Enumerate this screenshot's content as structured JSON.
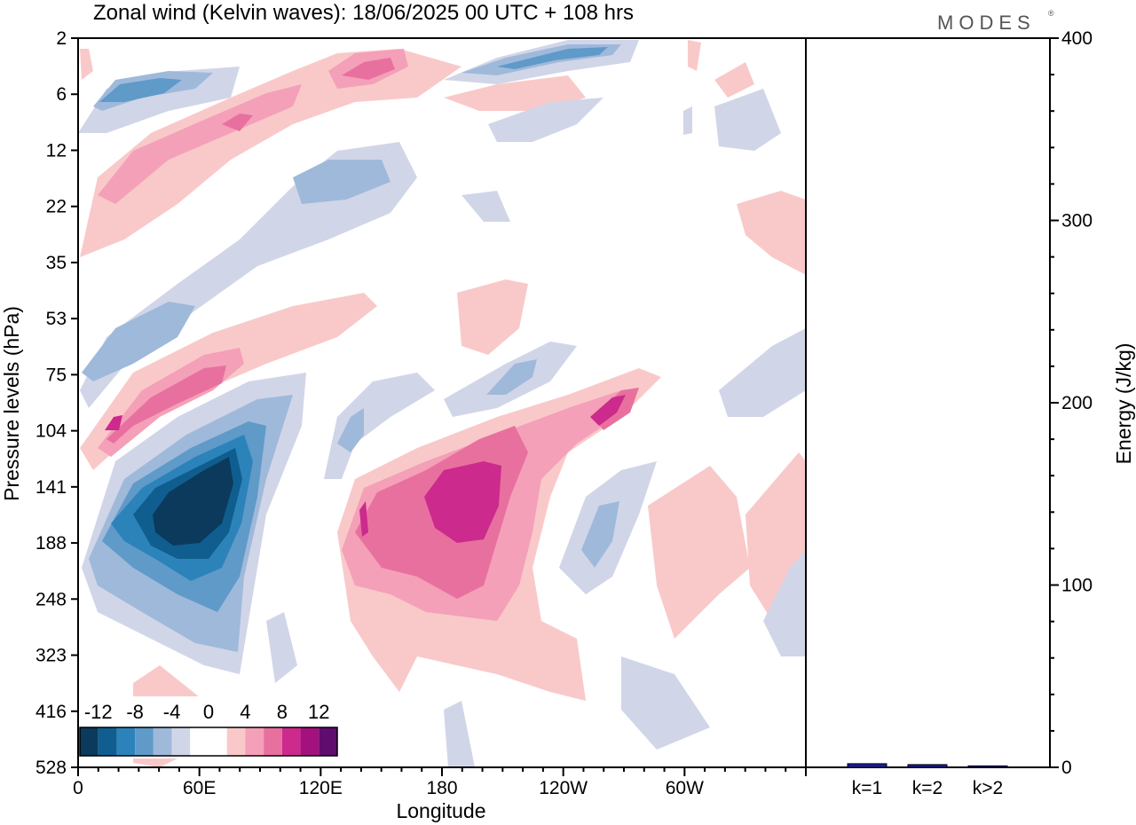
{
  "chart_data": [
    {
      "type": "heatmap",
      "title": "Zonal wind (Kelvin waves):  18/06/2025  00 UTC  + 108 hrs",
      "xlabel": "Longitude",
      "ylabel": "Pressure levels (hPa)",
      "x_tick_labels": [
        "0",
        "60E",
        "120E",
        "180",
        "120W",
        "60W"
      ],
      "x_ticks_deg": [
        0,
        60,
        120,
        180,
        240,
        300
      ],
      "xlim": [
        0,
        360
      ],
      "y_tick_labels": [
        "2",
        "6",
        "12",
        "22",
        "35",
        "53",
        "75",
        "104",
        "141",
        "188",
        "248",
        "323",
        "416",
        "528"
      ],
      "y_scale": "log",
      "colorbar": {
        "tick_labels": [
          "-12",
          "-8",
          "-4",
          "0",
          "4",
          "8",
          "12"
        ],
        "levels": [
          -14,
          -12,
          -10,
          -8,
          -6,
          -4,
          -2,
          0,
          2,
          4,
          6,
          8,
          10,
          12,
          14
        ],
        "colors": [
          "#0b3a5c",
          "#0f5e8f",
          "#2c83b9",
          "#5f9ac9",
          "#9fb9da",
          "#d1d5e8",
          "#ffffff",
          "#ffffff",
          "#f9c9c9",
          "#f4a0b8",
          "#e8709f",
          "#cc2a8c",
          "#a3117f",
          "#600b6e"
        ]
      },
      "features": [
        {
          "sign": "negative",
          "peak": -14,
          "lon": 48,
          "level_hpa": 150
        },
        {
          "sign": "positive",
          "peak": 12,
          "lon": 190,
          "level_hpa": 145
        },
        {
          "sign": "positive",
          "peak": 10,
          "lon": 250,
          "level_hpa": 95
        },
        {
          "sign": "positive",
          "peak": 10,
          "lon": 55,
          "level_hpa": 90
        },
        {
          "sign": "negative",
          "peak": -8,
          "lon": 225,
          "level_hpa": 2.5
        },
        {
          "sign": "negative",
          "peak": -8,
          "lon": 30,
          "level_hpa": 6
        },
        {
          "sign": "positive",
          "peak": 8,
          "lon": 145,
          "level_hpa": 4
        },
        {
          "sign": "negative",
          "peak": -6,
          "lon": 250,
          "level_hpa": 160
        },
        {
          "sign": "positive",
          "peak": 6,
          "lon": 345,
          "level_hpa": 160
        }
      ]
    },
    {
      "type": "bar",
      "categories": [
        "k=1",
        "k=2",
        "k>2"
      ],
      "values": [
        2,
        1.5,
        0.8
      ],
      "ylabel": "Energy (J/kg)",
      "ylim": [
        0,
        400
      ],
      "y_tick_labels": [
        "0",
        "100",
        "200",
        "300",
        "400"
      ],
      "bar_color": "#1a1aa0"
    }
  ],
  "logo": "MODES",
  "logo_mark": "®"
}
